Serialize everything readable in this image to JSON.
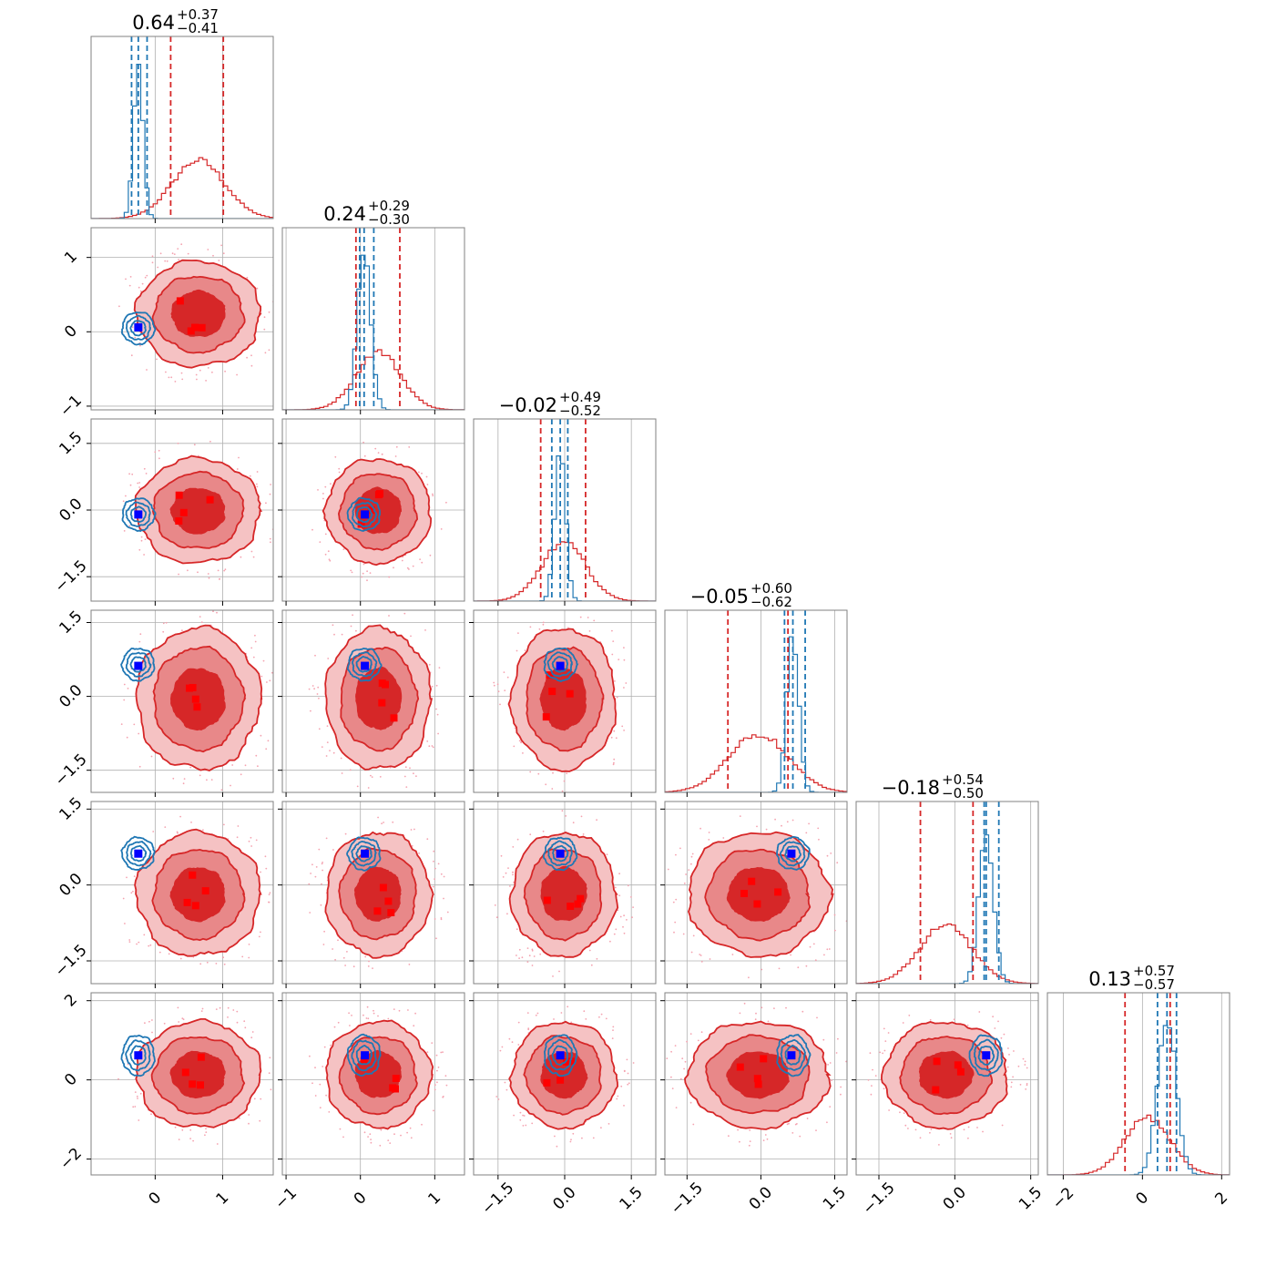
{
  "chart_data": {
    "type": "corner",
    "n_params": 6,
    "grid": true,
    "colors": {
      "series_a": "#d62728",
      "series_a_mid": "#e88889",
      "series_a_light": "#f5c2c3",
      "series_b": "#1f77b4",
      "truth": "#0000ff",
      "grid": "#b0b0b0",
      "frame": "#808080"
    },
    "series": [
      {
        "color": "#d62728",
        "means": [
          0.64,
          0.24,
          -0.02,
          -0.05,
          -0.18,
          0.13
        ],
        "sigmas": [
          0.39,
          0.3,
          0.5,
          0.61,
          0.52,
          0.57
        ],
        "quantile_lines": [
          [
            0.23,
            1.01
          ],
          [
            -0.06,
            0.53
          ],
          [
            -0.54,
            0.47
          ],
          [
            -0.67,
            0.55
          ],
          [
            -0.68,
            0.36
          ],
          [
            -0.44,
            0.7
          ]
        ]
      },
      {
        "color": "#1f77b4",
        "means": [
          -0.25,
          0.05,
          -0.1,
          0.65,
          0.62,
          0.62
        ],
        "sigmas": [
          0.07,
          0.09,
          0.12,
          0.12,
          0.14,
          0.23
        ],
        "quantile_lines": [
          [
            -0.35,
            -0.12
          ],
          [
            -0.01,
            0.18
          ],
          [
            -0.29,
            0.07
          ],
          [
            0.48,
            0.9
          ],
          [
            0.58,
            0.87
          ],
          [
            0.38,
            0.86
          ]
        ]
      }
    ],
    "truth_markers": [
      -0.25,
      0.06,
      -0.1,
      0.62,
      0.62,
      0.62
    ],
    "titles": [
      {
        "value": "0.64",
        "plus": "+0.37",
        "minus": "−0.41"
      },
      {
        "value": "0.24",
        "plus": "+0.29",
        "minus": "−0.30"
      },
      {
        "value": "−0.02",
        "plus": "+0.49",
        "minus": "−0.52"
      },
      {
        "value": "−0.05",
        "plus": "+0.60",
        "minus": "−0.62"
      },
      {
        "value": "−0.18",
        "plus": "+0.54",
        "minus": "−0.50"
      },
      {
        "value": "0.13",
        "plus": "+0.57",
        "minus": "−0.57"
      }
    ],
    "axes": [
      {
        "lim": [
          -0.95,
          1.75
        ],
        "ticks": [
          0,
          1
        ],
        "tick_labels": [
          "0",
          "1"
        ]
      },
      {
        "lim": [
          -1.05,
          1.4
        ],
        "ticks": [
          -1,
          0,
          1
        ],
        "tick_labels": [
          "−1",
          "0",
          "1"
        ]
      },
      {
        "lim": [
          -2.05,
          2.05
        ],
        "ticks": [
          -1.5,
          0,
          1.5
        ],
        "tick_labels": [
          "−1.5",
          "0.0",
          "1.5"
        ]
      },
      {
        "lim": [
          -1.95,
          1.75
        ],
        "ticks": [
          -1.5,
          0,
          1.5
        ],
        "tick_labels": [
          "−1.5",
          "0.0",
          "1.5"
        ]
      },
      {
        "lim": [
          -1.95,
          1.65
        ],
        "ticks": [
          -1.5,
          0,
          1.5
        ],
        "tick_labels": [
          "−1.5",
          "0.0",
          "1.5"
        ]
      },
      {
        "lim": [
          -2.4,
          2.2
        ],
        "ticks": [
          -2,
          0,
          2
        ],
        "tick_labels": [
          "−2",
          "0",
          "2"
        ]
      }
    ]
  }
}
